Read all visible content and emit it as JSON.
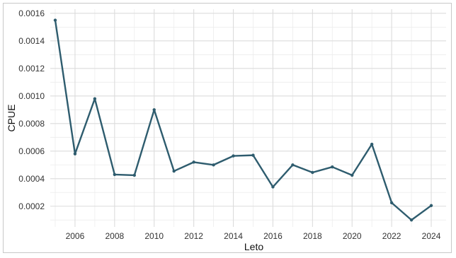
{
  "chart_data": {
    "type": "line",
    "xlabel": "Leto",
    "ylabel": "CPUE",
    "x": [
      2005,
      2006,
      2007,
      2008,
      2009,
      2010,
      2011,
      2012,
      2013,
      2014,
      2015,
      2016,
      2017,
      2018,
      2019,
      2020,
      2021,
      2022,
      2023,
      2024
    ],
    "series": [
      {
        "values": [
          0.00155,
          0.00058,
          0.00098,
          0.00043,
          0.000425,
          0.0009,
          0.000455,
          0.00052,
          0.0005,
          0.000565,
          0.00057,
          0.00034,
          0.0005,
          0.000445,
          0.000485,
          0.000425,
          0.00065,
          0.000225,
          0.0001,
          0.000205
        ],
        "color": "#2e5c6e"
      }
    ],
    "xlim": [
      2004.75,
      2024.75
    ],
    "ylim": [
      5e-05,
      0.00163
    ],
    "xticks": [
      2006,
      2008,
      2010,
      2012,
      2014,
      2016,
      2018,
      2020,
      2022,
      2024
    ],
    "xtick_labels": [
      "2006",
      "2008",
      "2010",
      "2012",
      "2014",
      "2016",
      "2018",
      "2020",
      "2022",
      "2024"
    ],
    "yticks": [
      0.0002,
      0.0004,
      0.0006,
      0.0008,
      0.001,
      0.0012,
      0.0014,
      0.0016
    ],
    "ytick_labels": [
      "0.0002",
      "0.0004",
      "0.0006",
      "0.0008",
      "0.0010",
      "0.0012",
      "0.0014",
      "0.0016"
    ],
    "grid": true,
    "legend": "none"
  }
}
